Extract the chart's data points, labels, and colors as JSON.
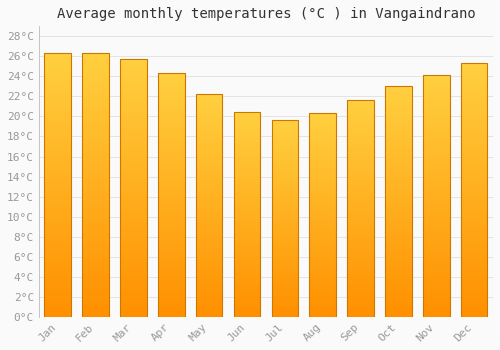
{
  "title": "Average monthly temperatures (°C ) in Vangaindrano",
  "months": [
    "Jan",
    "Feb",
    "Mar",
    "Apr",
    "May",
    "Jun",
    "Jul",
    "Aug",
    "Sep",
    "Oct",
    "Nov",
    "Dec"
  ],
  "values": [
    26.3,
    26.3,
    25.7,
    24.3,
    22.2,
    20.4,
    19.6,
    20.3,
    21.6,
    23.0,
    24.1,
    25.3
  ],
  "bar_color_top": "#FFD040",
  "bar_color_mid": "#FFA500",
  "bar_color_bottom": "#FF8C00",
  "bar_edge_color": "#CC7700",
  "ylim": [
    0,
    29
  ],
  "yticks": [
    0,
    2,
    4,
    6,
    8,
    10,
    12,
    14,
    16,
    18,
    20,
    22,
    24,
    26,
    28
  ],
  "ytick_labels": [
    "0°C",
    "2°C",
    "4°C",
    "6°C",
    "8°C",
    "10°C",
    "12°C",
    "14°C",
    "16°C",
    "18°C",
    "20°C",
    "22°C",
    "24°C",
    "26°C",
    "28°C"
  ],
  "background_color": "#FAFAFA",
  "grid_color": "#E0E0E0",
  "title_fontsize": 10,
  "tick_fontsize": 8,
  "font_family": "monospace",
  "bar_width": 0.7
}
